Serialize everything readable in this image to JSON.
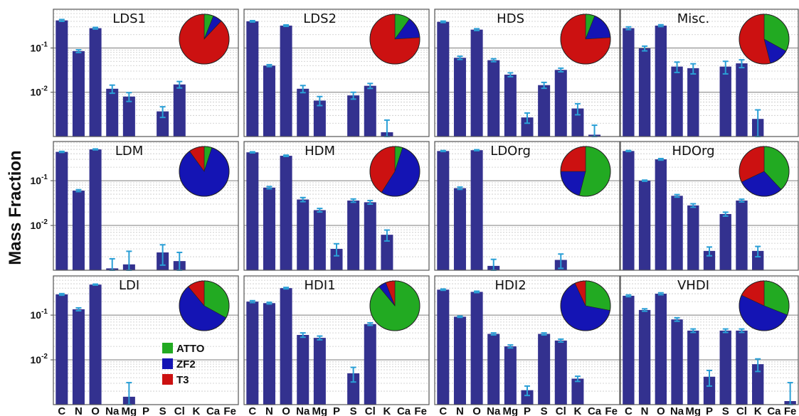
{
  "figure": {
    "ylabel": "Mass Fraction",
    "elements": [
      "C",
      "N",
      "O",
      "Na",
      "Mg",
      "P",
      "S",
      "Cl",
      "K",
      "Ca",
      "Fe"
    ],
    "yticks": [
      {
        "v": 0.1,
        "base": "10",
        "exp": "-1"
      },
      {
        "v": 0.01,
        "base": "10",
        "exp": "-2"
      }
    ],
    "legend": [
      {
        "label": "ATTO",
        "color": "#22aa22"
      },
      {
        "label": "ZF2",
        "color": "#1414b4"
      },
      {
        "label": "T3",
        "color": "#cc1111"
      }
    ],
    "colors": {
      "bar": "#33318f",
      "error": "#2a9fd6",
      "grid": "#9a9a9a"
    }
  },
  "chart_data": [
    {
      "type": "bar",
      "title": "LDS1",
      "yscale": "log",
      "ylim": [
        0.001,
        0.75
      ],
      "values": [
        0.42,
        0.085,
        0.28,
        0.012,
        0.008,
        null,
        0.0037,
        0.015,
        null,
        null,
        null
      ],
      "errors": [
        0.02,
        0.006,
        0.012,
        0.0025,
        0.0018,
        null,
        0.001,
        0.0025,
        null,
        null,
        null
      ],
      "pie": [
        6,
        6,
        88
      ]
    },
    {
      "type": "bar",
      "title": "LDS2",
      "yscale": "log",
      "ylim": [
        0.001,
        0.75
      ],
      "values": [
        0.4,
        0.04,
        0.32,
        0.012,
        0.0065,
        null,
        0.0085,
        0.014,
        0.00125,
        null,
        null
      ],
      "errors": [
        0.015,
        0.002,
        0.012,
        0.0022,
        0.0015,
        null,
        0.0015,
        0.0018,
        0.0011,
        null,
        null
      ],
      "pie": [
        10,
        14,
        76
      ]
    },
    {
      "type": "bar",
      "title": "HDS",
      "yscale": "log",
      "ylim": [
        0.001,
        0.75
      ],
      "values": [
        0.39,
        0.06,
        0.26,
        0.053,
        0.025,
        0.0027,
        0.0145,
        0.032,
        0.0043,
        0.0011,
        null
      ],
      "errors": [
        0.015,
        0.005,
        0.012,
        0.004,
        0.0025,
        0.0007,
        0.0022,
        0.003,
        0.0012,
        0.0007,
        null
      ],
      "pie": [
        6,
        18,
        76
      ]
    },
    {
      "type": "bar",
      "title": "Misc.",
      "yscale": "log",
      "ylim": [
        0.001,
        0.75
      ],
      "values": [
        0.28,
        0.098,
        0.32,
        0.038,
        0.035,
        null,
        0.038,
        0.045,
        0.0025,
        null,
        null
      ],
      "errors": [
        0.02,
        0.012,
        0.015,
        0.01,
        0.009,
        null,
        0.012,
        0.009,
        0.0015,
        null,
        null
      ],
      "pie": [
        33,
        13,
        54
      ]
    },
    {
      "type": "bar",
      "title": "LDM",
      "yscale": "log",
      "ylim": [
        0.001,
        0.75
      ],
      "values": [
        0.44,
        0.06,
        0.5,
        0.0011,
        0.00135,
        null,
        0.0025,
        0.0016,
        null,
        null,
        null
      ],
      "errors": [
        0.012,
        0.003,
        0.012,
        0.0007,
        0.0013,
        null,
        0.0012,
        0.0009,
        null,
        null,
        null
      ],
      "pie": [
        5,
        85,
        10
      ]
    },
    {
      "type": "bar",
      "title": "HDM",
      "yscale": "log",
      "ylim": [
        0.001,
        0.75
      ],
      "values": [
        0.43,
        0.07,
        0.36,
        0.038,
        0.022,
        0.003,
        0.036,
        0.033,
        0.0062,
        null,
        null
      ],
      "errors": [
        0.012,
        0.004,
        0.012,
        0.004,
        0.002,
        0.0009,
        0.003,
        0.003,
        0.0017,
        null,
        null
      ],
      "pie": [
        5,
        54,
        41
      ]
    },
    {
      "type": "bar",
      "title": "LDOrg",
      "yscale": "log",
      "ylim": [
        0.001,
        0.75
      ],
      "values": [
        0.46,
        0.068,
        0.48,
        0.00125,
        null,
        null,
        null,
        0.0017,
        null,
        null,
        null
      ],
      "errors": [
        0.012,
        0.004,
        0.012,
        0.0005,
        null,
        null,
        null,
        0.0006,
        null,
        null,
        null
      ],
      "pie": [
        54,
        21,
        25
      ]
    },
    {
      "type": "bar",
      "title": "HDOrg",
      "yscale": "log",
      "ylim": [
        0.001,
        0.75
      ],
      "values": [
        0.46,
        0.1,
        0.3,
        0.046,
        0.028,
        0.0027,
        0.018,
        0.036,
        0.0027,
        null,
        null
      ],
      "errors": [
        0.012,
        0.003,
        0.012,
        0.003,
        0.0025,
        0.0006,
        0.0018,
        0.0025,
        0.0007,
        null,
        null
      ],
      "pie": [
        38,
        30,
        32
      ]
    },
    {
      "type": "bar",
      "title": "LDI",
      "yscale": "log",
      "ylim": [
        0.001,
        0.75
      ],
      "values": [
        0.29,
        0.135,
        0.48,
        null,
        0.0015,
        null,
        null,
        null,
        null,
        null,
        null
      ],
      "errors": [
        0.012,
        0.01,
        0.012,
        null,
        0.0016,
        null,
        null,
        null,
        null,
        null,
        null
      ],
      "pie": [
        33,
        56,
        11
      ]
    },
    {
      "type": "bar",
      "title": "HDI1",
      "yscale": "log",
      "ylim": [
        0.001,
        0.75
      ],
      "values": [
        0.2,
        0.185,
        0.4,
        0.036,
        0.031,
        null,
        0.005,
        0.063,
        null,
        null,
        null
      ],
      "errors": [
        0.01,
        0.008,
        0.015,
        0.004,
        0.003,
        null,
        0.0018,
        0.004,
        null,
        null,
        null
      ],
      "pie": [
        89,
        5,
        6
      ]
    },
    {
      "type": "bar",
      "title": "HDI2",
      "yscale": "log",
      "ylim": [
        0.001,
        0.75
      ],
      "values": [
        0.37,
        0.092,
        0.33,
        0.038,
        0.02,
        0.0021,
        0.038,
        0.027,
        0.0038,
        null,
        null
      ],
      "errors": [
        0.012,
        0.003,
        0.012,
        0.002,
        0.0015,
        0.0005,
        0.002,
        0.002,
        0.0005,
        null,
        null
      ],
      "pie": [
        28,
        65,
        7
      ]
    },
    {
      "type": "bar",
      "title": "VHDI",
      "yscale": "log",
      "ylim": [
        0.001,
        0.75
      ],
      "values": [
        0.27,
        0.13,
        0.3,
        0.08,
        0.045,
        0.0042,
        0.045,
        0.045,
        0.008,
        null,
        0.0012
      ],
      "errors": [
        0.012,
        0.008,
        0.015,
        0.007,
        0.004,
        0.0016,
        0.004,
        0.004,
        0.0025,
        null,
        0.0019
      ],
      "pie": [
        31,
        51,
        18
      ]
    }
  ]
}
